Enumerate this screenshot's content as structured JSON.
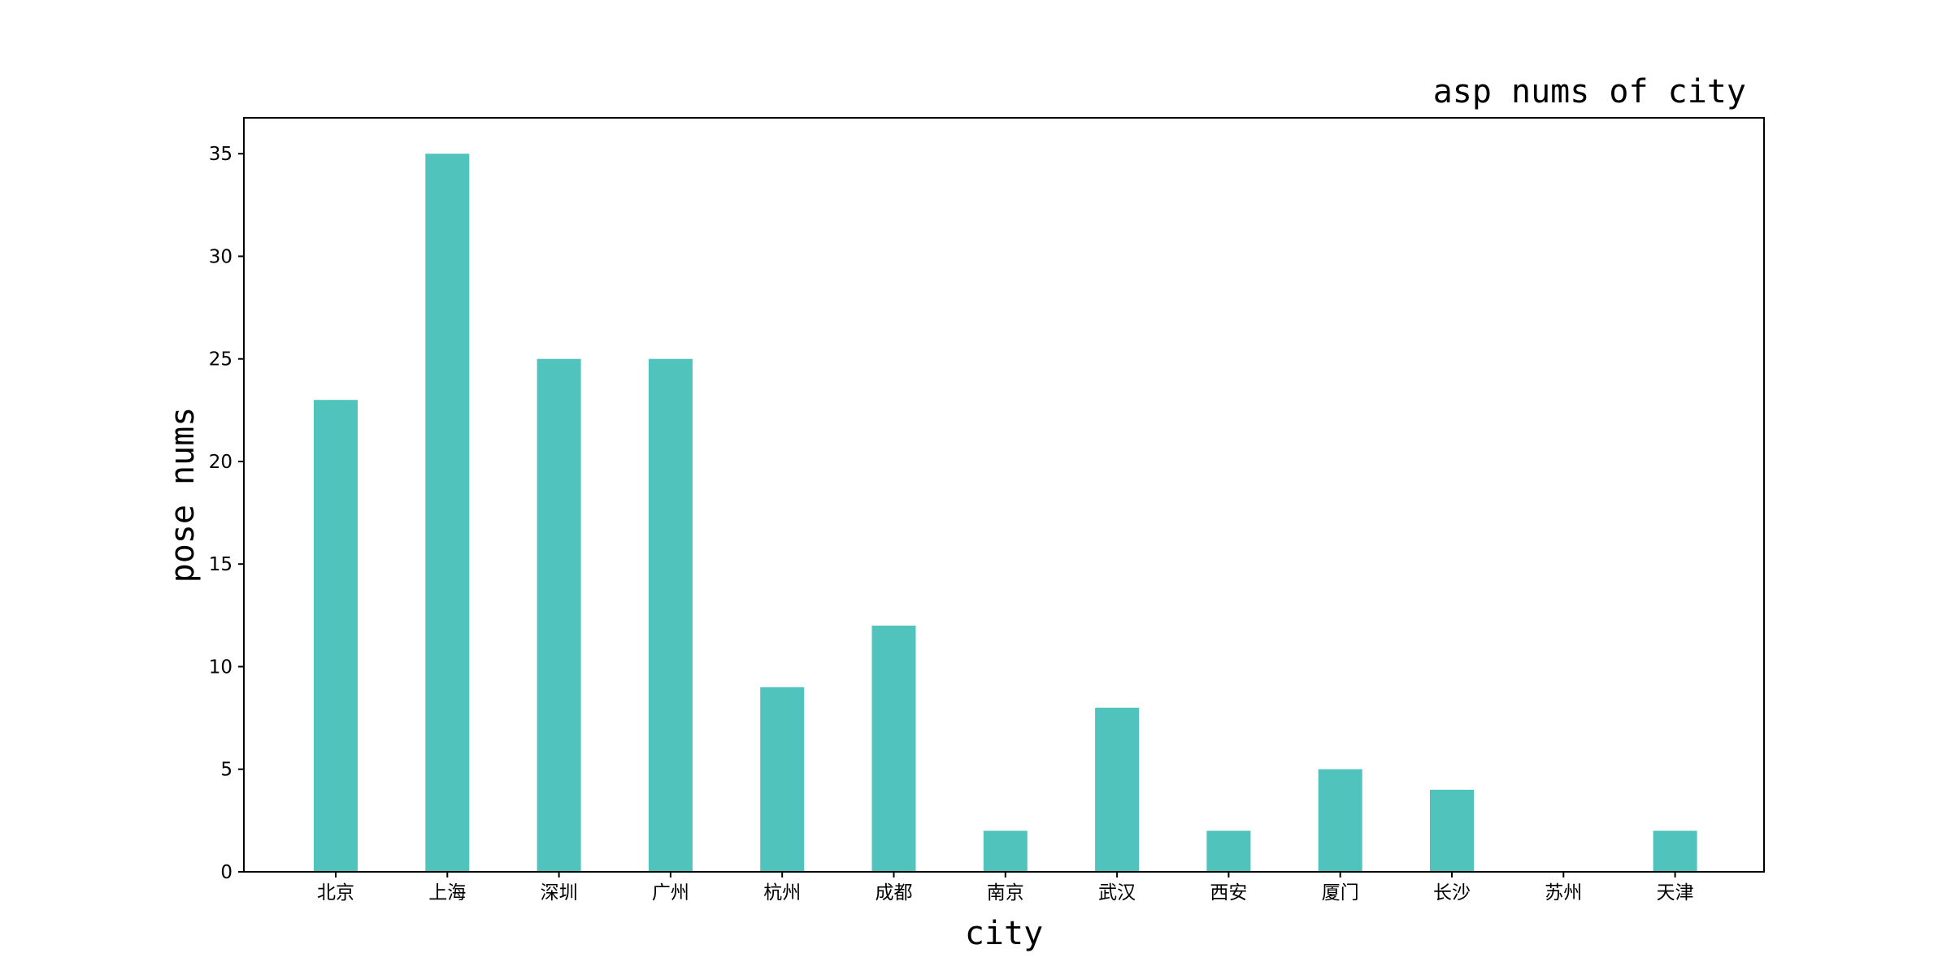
{
  "chart_data": {
    "type": "bar",
    "title": "asp nums of city",
    "xlabel": "city",
    "ylabel": "pose nums",
    "categories": [
      "北京",
      "上海",
      "深圳",
      "广州",
      "杭州",
      "成都",
      "南京",
      "武汉",
      "西安",
      "厦门",
      "长沙",
      "苏州",
      "天津"
    ],
    "values": [
      23,
      35,
      25,
      25,
      9,
      12,
      2,
      8,
      2,
      5,
      4,
      0,
      2
    ],
    "ylim": [
      0,
      36.75
    ],
    "yticks": [
      "0",
      "5",
      "10",
      "15",
      "20",
      "25",
      "30",
      "35"
    ],
    "bar_color": "#4FC3BC",
    "grid": false,
    "legend": "none"
  }
}
